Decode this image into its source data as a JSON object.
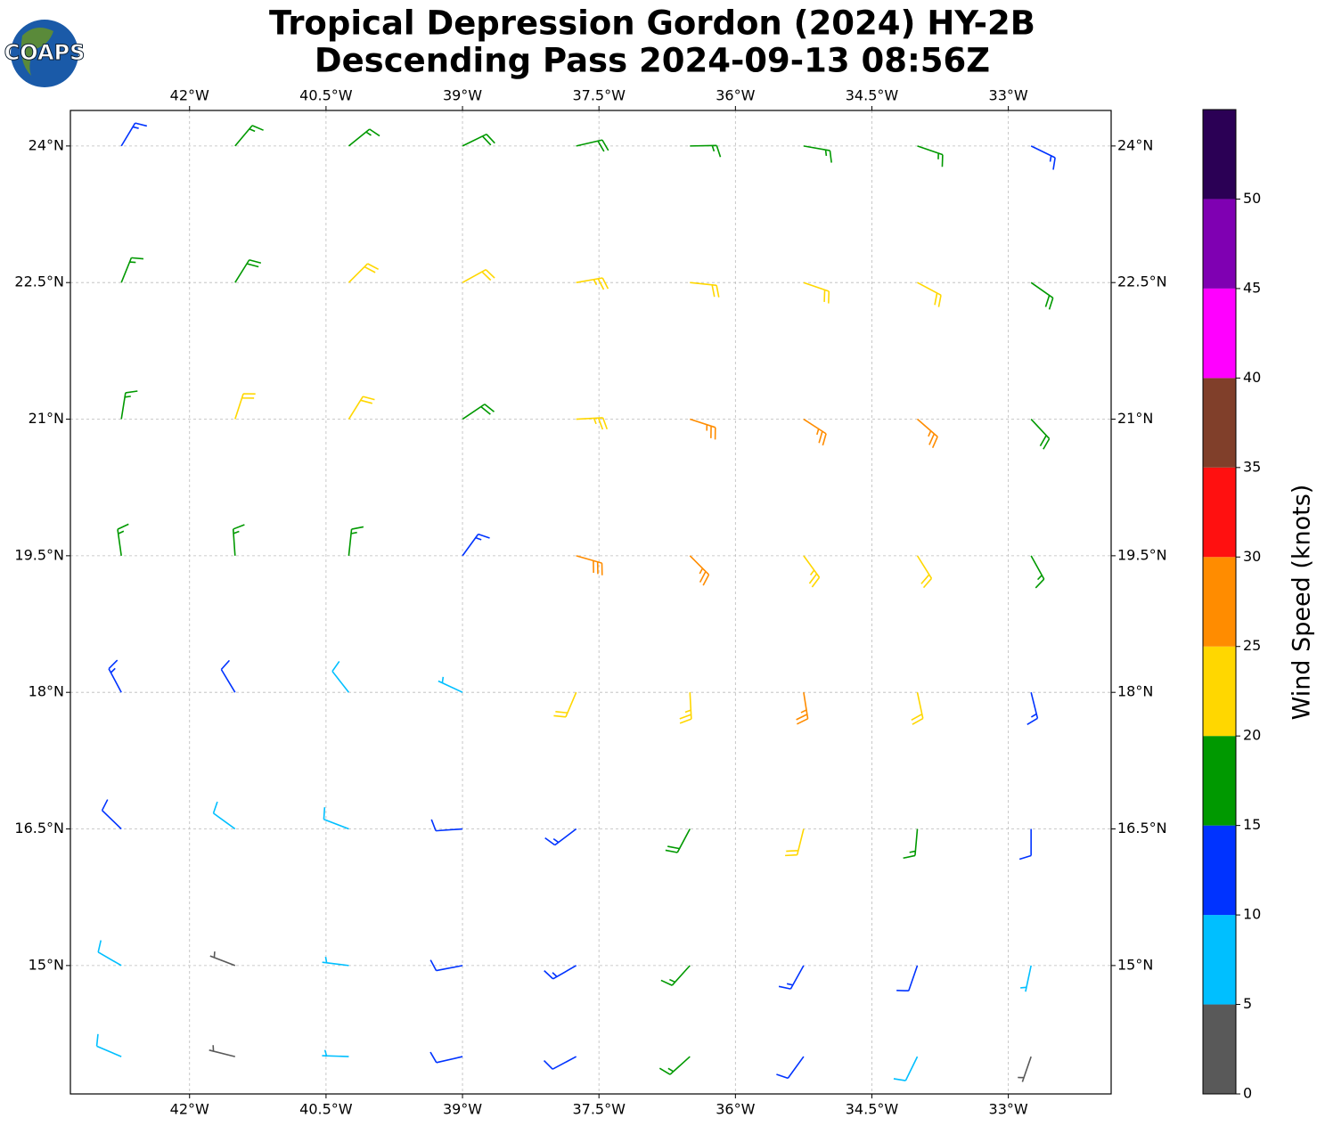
{
  "logo": "COAPS",
  "chart_data": {
    "type": "barbs",
    "title": [
      "Tropical Depression Gordon (2024) HY-2B",
      "Descending Pass 2024-09-13 08:56Z"
    ],
    "xlim": [
      -43.31,
      -31.87
    ],
    "ylim": [
      13.59,
      24.39
    ],
    "xticks": [
      {
        "value": -42,
        "label": "42°W"
      },
      {
        "value": -40.5,
        "label": "40.5°W"
      },
      {
        "value": -39,
        "label": "39°W"
      },
      {
        "value": -37.5,
        "label": "37.5°W"
      },
      {
        "value": -36,
        "label": "36°W"
      },
      {
        "value": -34.5,
        "label": "34.5°W"
      },
      {
        "value": -33,
        "label": "33°W"
      }
    ],
    "yticks": [
      {
        "value": 24,
        "label": "24°N"
      },
      {
        "value": 22.5,
        "label": "22.5°N"
      },
      {
        "value": 21,
        "label": "21°N"
      },
      {
        "value": 19.5,
        "label": "19.5°N"
      },
      {
        "value": 18,
        "label": "18°N"
      },
      {
        "value": 16.5,
        "label": "16.5°N"
      },
      {
        "value": 15,
        "label": "15°N"
      }
    ],
    "grid": true,
    "barbs": {
      "lons": [
        -42.75,
        -41.5,
        -40.25,
        -39,
        -37.75,
        -36.5,
        -35.25,
        -34,
        -32.75
      ],
      "lats": [
        24,
        22.5,
        21,
        19.5,
        18,
        16.5,
        15,
        14
      ],
      "speed": [
        [
          14,
          17,
          17,
          18,
          18,
          17,
          17,
          17,
          14
        ],
        [
          17,
          18,
          21,
          22,
          23,
          22,
          22,
          21,
          18
        ],
        [
          17,
          21,
          21,
          18,
          24,
          27,
          27,
          26,
          18
        ],
        [
          17,
          17,
          16,
          14,
          28,
          27,
          24,
          22,
          16
        ],
        [
          14,
          12,
          8,
          7,
          22,
          24,
          25,
          20,
          13
        ],
        [
          12,
          9,
          8,
          11,
          14,
          18,
          22,
          17,
          12
        ],
        [
          9,
          4,
          7,
          11,
          13,
          16,
          14,
          11,
          7
        ],
        [
          8,
          3,
          6,
          10,
          12,
          15,
          12,
          9,
          4
        ]
      ],
      "dir": [
        [
          31,
          40,
          51,
          64,
          77,
          89,
          100,
          109,
          116
        ],
        [
          22,
          32,
          45,
          61,
          80,
          96,
          109,
          118,
          125
        ],
        [
          9,
          18,
          32,
          56,
          87,
          108,
          123,
          131,
          137
        ],
        [
          352,
          356,
          6,
          36,
          106,
          135,
          144,
          148,
          151
        ],
        [
          332,
          329,
          322,
          295,
          203,
          177,
          171,
          168,
          166
        ],
        [
          314,
          306,
          291,
          266,
          233,
          208,
          194,
          185,
          180
        ],
        [
          300,
          291,
          277,
          259,
          240,
          222,
          209,
          199,
          192
        ],
        [
          293,
          284,
          272,
          257,
          242,
          228,
          216,
          206,
          199
        ]
      ]
    },
    "colorbar": {
      "label": "Wind Speed (knots)",
      "clim": [
        0,
        55
      ],
      "ticks": [
        0,
        5,
        10,
        15,
        20,
        25,
        30,
        35,
        40,
        45,
        50
      ],
      "colors": [
        "#595959",
        "#00bfff",
        "#0033ff",
        "#009900",
        "#ffd700",
        "#ff8c00",
        "#ff1010",
        "#803f2a",
        "#ff00ff",
        "#7f00b2",
        "#2b0055"
      ]
    }
  }
}
